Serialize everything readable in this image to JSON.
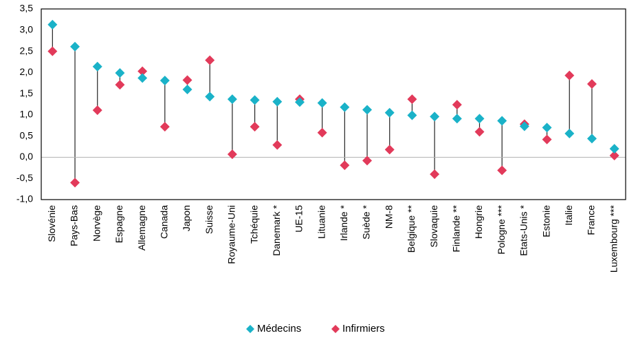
{
  "chart_data": {
    "type": "scatter",
    "title": "",
    "xlabel": "",
    "ylabel": "",
    "ylim": [
      -1.0,
      3.5
    ],
    "y_tick_step": 0.5,
    "y_tick_labels": [
      "3,5",
      "3,0",
      "2,5",
      "2,0",
      "1,5",
      "1,0",
      "0,5",
      "0,0",
      "-0,5",
      "-1,0"
    ],
    "grid": false,
    "legend_position": "bottom",
    "categories": [
      "Slovénie",
      "Pays-Bas",
      "Norvège",
      "Espagne",
      "Allemagne",
      "Canada",
      "Japon",
      "Suisse",
      "Royaume-Uni",
      "Tchéquie",
      "Danemark *",
      "UE-15",
      "Lituanie",
      "Irlande *",
      "Suède *",
      "NM-8",
      "Belgique **",
      "Slovaquie",
      "Finlande **",
      "Hongrie",
      "Pologne ***",
      "Etats-Unis *",
      "Estonie",
      "Italie",
      "France",
      "Luxembourg ***"
    ],
    "series": [
      {
        "name": "Médecins",
        "color": "#1ab2c8",
        "marker": "diamond",
        "values": [
          3.13,
          2.61,
          2.14,
          1.99,
          1.87,
          1.81,
          1.6,
          1.43,
          1.37,
          1.35,
          1.31,
          1.3,
          1.28,
          1.18,
          1.12,
          1.05,
          0.99,
          0.96,
          0.91,
          0.91,
          0.86,
          0.73,
          0.7,
          0.56,
          0.44,
          0.2
        ]
      },
      {
        "name": "Infirmiers",
        "color": "#e23a5a",
        "marker": "diamond",
        "values": [
          2.5,
          -0.6,
          1.11,
          1.71,
          2.03,
          0.72,
          1.82,
          2.29,
          0.07,
          0.72,
          0.29,
          1.37,
          0.58,
          -0.19,
          -0.08,
          0.18,
          1.37,
          -0.4,
          1.24,
          0.6,
          -0.31,
          0.78,
          0.42,
          1.93,
          1.73,
          0.04
        ]
      }
    ],
    "connector_color": "#222222"
  }
}
